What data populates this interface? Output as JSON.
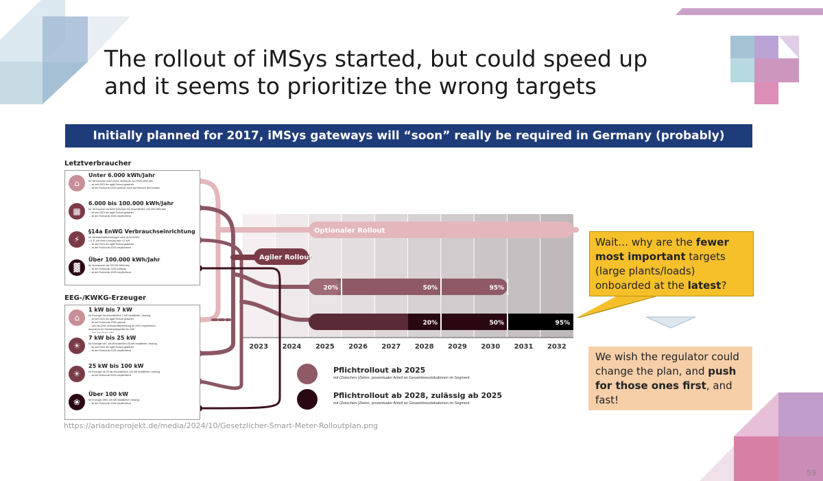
{
  "slide": {
    "title_line1": "The rollout of iMSys started, but could speed up",
    "title_line2": "and it seems to prioritize the wrong targets",
    "subtitle": "Initially planned for 2017, iMSys gateways will “soon” really be required in Germany (probably)",
    "source": "https://ariadneprojekt.de/media/2024/10/Gesetzlicher-Smart-Meter-Rolloutplan.png",
    "page_number": "59"
  },
  "diagram": {
    "group1_label": "Letztverbraucher",
    "group2_label": "EEG-/KWKG-Erzeuger",
    "group1_items": [
      {
        "icon": "house-icon",
        "title": "Unter 6.000 kWh/Jahr",
        "lines": [
          "für Verbraucher unter einem Verbrauch von 6000 kWh/Jahr",
          "→ ist seit 2023 der agile Rollout gestartet",
          "→ ist der Rollout ab 2025 optional, auch auf Wunsch des Kunden"
        ]
      },
      {
        "icon": "building-icon",
        "title": "6.000 bis 100.000 kWh/Jahr",
        "lines": [
          "für Verbraucher ab 6000 kWh/Jahr bis einschließlich 100.000 kWh/Jahr",
          "→ ist seit 2023 der agile Rollout gestartet",
          "→ ist der Rollout ab 2025 verpflichtend"
        ]
      },
      {
        "icon": "charger-icon",
        "title": "§14a EnWG Verbrauchseinrichtung",
        "lines": [
          "für Verbrauchseinrichtungen nach §14a EnWG,",
          "i. d. R. mit einer Leistung über 4,2 kW",
          "→ ist seit 2023 der agile Rollout gestartet",
          "→ ist der Rollout ab 2025 verpflichtend"
        ]
      },
      {
        "icon": "factory-icon",
        "title": "Über 100.000 kWh/Jahr",
        "lines": [
          "für Verbraucher ab 100.000 kWh/Jahr",
          "→ ist der Rollout ab 2025 zulässig",
          "→ ist der Rollout ab 2028 verpflichtend"
        ]
      }
    ],
    "group2_items": [
      {
        "icon": "solar-house-icon",
        "title": "1 kW bis 7 kW",
        "lines": [
          "für Erzeuger bis einschließlich 7 kW installierter Leistung",
          "→ ist seit 2023 der agile Rollout gestartet",
          "→ ist der Rollout ab 2025 optional",
          "→ und mit §14a Verbrauchseinrichtung ab 2025 verpflichtend",
          "Ausnahme für Steckersolargeräte bis 2kW",
          "→ kein Anschluss nötig"
        ]
      },
      {
        "icon": "solar-panel-icon",
        "title": "7 kW bis 25 kW",
        "lines": [
          "für Erzeuger ab 7 bis einschließlich 25 kW installierter Leistung",
          "→ ist seit 2023 der agile Rollout gestartet",
          "→ ist der Rollout ab 2025 verpflichtend"
        ]
      },
      {
        "icon": "solar-farm-icon",
        "title": "25 kW bis 100 kW",
        "lines": [
          "für Erzeuger ab 25 bis einschließlich 100 kW installierter Leistung",
          "→ ist der Rollout ab 2025 verpflichtend"
        ]
      },
      {
        "icon": "wind-turbine-icon",
        "title": "Über 100 kW",
        "lines": [
          "für Erzeuger über 100 kW installierter Leistung",
          "→ ist der Rollout ab 2028 verpflichtend"
        ]
      }
    ],
    "years": [
      "2023",
      "2024",
      "2025",
      "2026",
      "2027",
      "2028",
      "2029",
      "2030",
      "2031",
      "2032"
    ],
    "optional_label": "Optionaler Rollout",
    "agile_label": "Agiler Rollout",
    "band1_labels": [
      "20%",
      "50%",
      "95%"
    ],
    "band2_labels": [
      "20%",
      "50%",
      "95%"
    ],
    "legend": [
      {
        "title": "Pflichtrollout ab 2025",
        "desc": "mit (Zwischen-)Zielen, prozentualer Anteil an Gesamtmesslokationen im Segment",
        "color": "#8f5a66"
      },
      {
        "title": "Pflichtrollout ab 2028, zulässig ab 2025",
        "desc": "mit (Zwischen-)Zielen, prozentualer Anteil an Gesamtmesslokationen im Segment",
        "color": "#2a0812"
      }
    ],
    "colors": {
      "optional": "#e3b7bb",
      "agile": "#7a3b47",
      "band1": "#8f5a66",
      "band2": "#2a0812"
    }
  },
  "callouts": {
    "question": [
      {
        "t": "Wait… why are the ",
        "b": false
      },
      {
        "t": "fewer most important",
        "b": true
      },
      {
        "t": " targets (large plants/loads) onboarded at the ",
        "b": false
      },
      {
        "t": "latest",
        "b": true
      },
      {
        "t": "?",
        "b": false
      }
    ],
    "wish": [
      {
        "t": "We wish the regulator could change the plan, and ",
        "b": false
      },
      {
        "t": "push for those ones first",
        "b": true
      },
      {
        "t": ", and fast!",
        "b": false
      }
    ]
  }
}
